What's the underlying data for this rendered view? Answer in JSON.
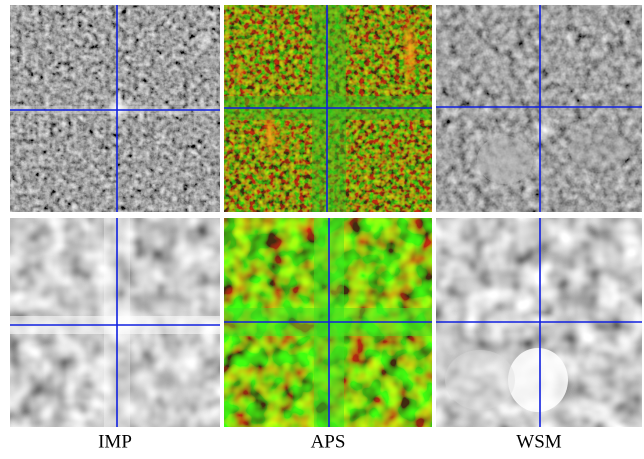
{
  "labels": [
    "IMP",
    "APS",
    "WSM"
  ]
}
